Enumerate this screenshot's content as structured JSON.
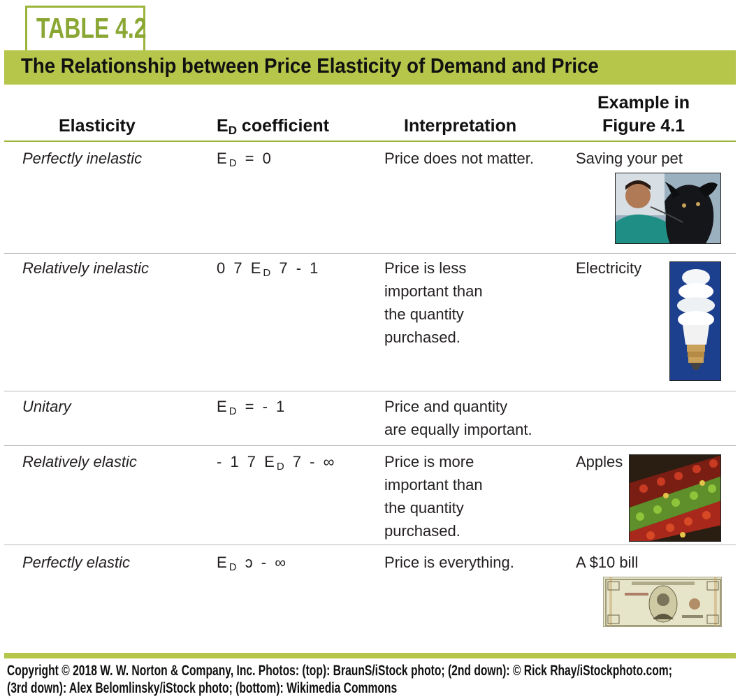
{
  "tag": "TABLE 4.2",
  "title": "The Relationship between Price Elasticity of Demand and Price",
  "headers": {
    "elasticity": "Elasticity",
    "coef_prefix": "E",
    "coef_sub": "D",
    "coef_suffix": " coefficient",
    "interpretation": "Interpretation",
    "example_line1": "Example in",
    "example_line2": "Figure 4.1"
  },
  "rows": [
    {
      "elasticity": "Perfectly inelastic",
      "coef": {
        "pre": "",
        "sub": "D",
        "post": " = 0"
      },
      "interpretation": [
        "Price does not matter."
      ],
      "example": "Saving your pet",
      "image": "veterinarian-with-dog-photo"
    },
    {
      "elasticity": "Relatively inelastic",
      "coef": {
        "pre": "0 7 ",
        "sub": "D",
        "post": " 7 - 1"
      },
      "interpretation": [
        "Price is less",
        "important than",
        "the quantity",
        "purchased."
      ],
      "example": "Electricity",
      "image": "light-bulb-photo"
    },
    {
      "elasticity": "Unitary",
      "coef": {
        "pre": "",
        "sub": "D",
        "post": " = - 1"
      },
      "interpretation": [
        "Price and quantity",
        "are equally important."
      ],
      "example": "",
      "image": ""
    },
    {
      "elasticity": "Relatively elastic",
      "coef": {
        "pre": "- 1 7 ",
        "sub": "D",
        "post": " 7 - ∞"
      },
      "interpretation": [
        "Price is more",
        "important than",
        "the quantity",
        "purchased."
      ],
      "example": "Apples",
      "image": "apples-photo"
    },
    {
      "elasticity": "Perfectly elastic",
      "coef": {
        "pre": "",
        "sub": "D",
        "post": " ɔ - ∞"
      },
      "interpretation": [
        "Price is everything."
      ],
      "example": "A $10 bill",
      "image": "ten-dollar-bill-photo"
    }
  ],
  "footer": [
    "Copyright © 2018 W. W. Norton & Company, Inc. Photos: (top): BraunS/iStock photo; (2nd down): © Rick Rhay/iStockphoto.com;",
    "(3rd down): Alex Belomlinsky/iStock photo; (bottom): Wikimedia Commons"
  ],
  "colors": {
    "accent": "#b5c64a",
    "tag_text": "#8aa633",
    "rule": "#9bb53a"
  }
}
